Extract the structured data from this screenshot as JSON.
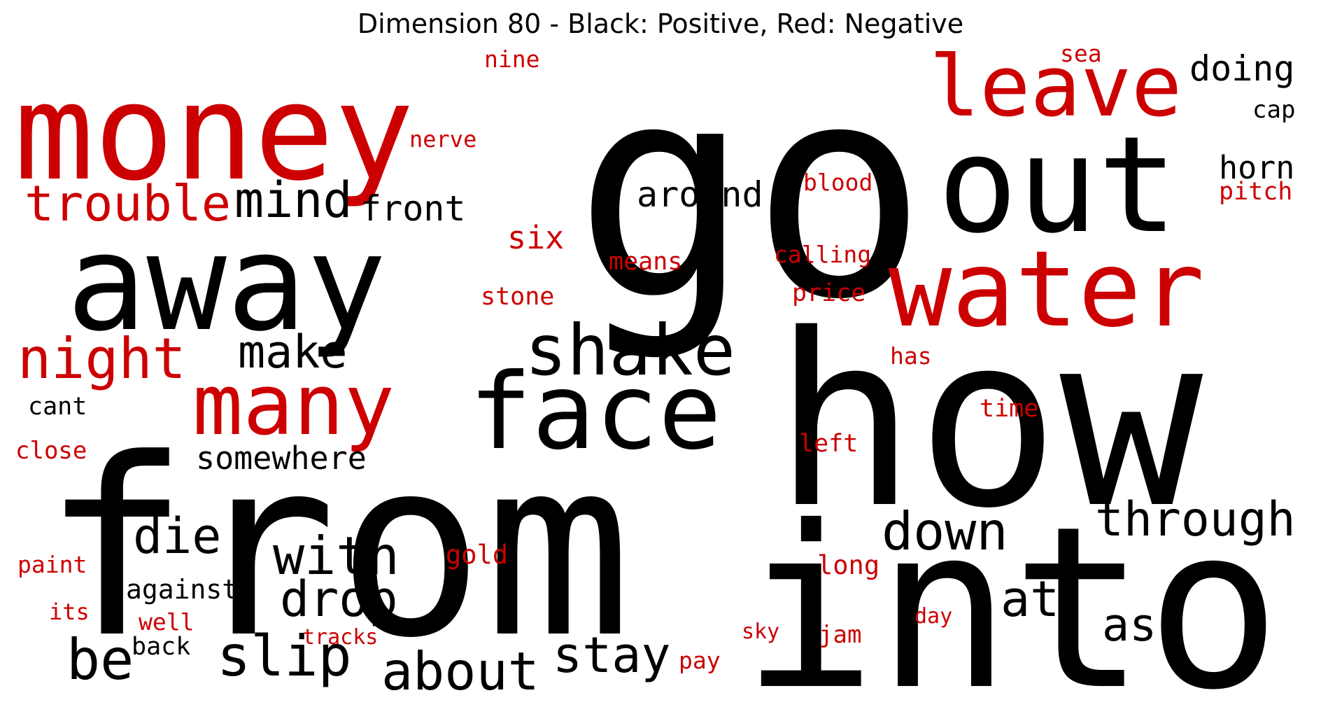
{
  "chart_data": {
    "type": "wordcloud",
    "title": "Dimension 80 - Black: Positive, Red: Negative",
    "colors": {
      "positive": "#000000",
      "negative": "#cc0000"
    },
    "words": [
      {
        "text": "go",
        "sign": "positive"
      },
      {
        "text": "how",
        "sign": "positive"
      },
      {
        "text": "from",
        "sign": "positive"
      },
      {
        "text": "into",
        "sign": "positive"
      },
      {
        "text": "money",
        "sign": "negative"
      },
      {
        "text": "away",
        "sign": "positive"
      },
      {
        "text": "out",
        "sign": "positive"
      },
      {
        "text": "water",
        "sign": "negative"
      },
      {
        "text": "leave",
        "sign": "negative"
      },
      {
        "text": "face",
        "sign": "positive"
      },
      {
        "text": "many",
        "sign": "negative"
      },
      {
        "text": "shake",
        "sign": "positive"
      },
      {
        "text": "trouble",
        "sign": "negative"
      },
      {
        "text": "mind",
        "sign": "positive"
      },
      {
        "text": "night",
        "sign": "negative"
      },
      {
        "text": "through",
        "sign": "positive"
      },
      {
        "text": "down",
        "sign": "positive"
      },
      {
        "text": "with",
        "sign": "positive"
      },
      {
        "text": "about",
        "sign": "positive"
      },
      {
        "text": "stay",
        "sign": "positive"
      },
      {
        "text": "slip",
        "sign": "positive"
      },
      {
        "text": "drop",
        "sign": "positive"
      },
      {
        "text": "make",
        "sign": "positive"
      },
      {
        "text": "die",
        "sign": "positive"
      },
      {
        "text": "be",
        "sign": "positive"
      },
      {
        "text": "at",
        "sign": "positive"
      },
      {
        "text": "as",
        "sign": "positive"
      },
      {
        "text": "around",
        "sign": "positive"
      },
      {
        "text": "doing",
        "sign": "positive"
      },
      {
        "text": "front",
        "sign": "positive"
      },
      {
        "text": "somewhere",
        "sign": "positive"
      },
      {
        "text": "horn",
        "sign": "positive"
      },
      {
        "text": "six",
        "sign": "negative"
      },
      {
        "text": "nine",
        "sign": "negative"
      },
      {
        "text": "sea",
        "sign": "negative"
      },
      {
        "text": "cap",
        "sign": "positive"
      },
      {
        "text": "pitch",
        "sign": "negative"
      },
      {
        "text": "nerve",
        "sign": "negative"
      },
      {
        "text": "blood",
        "sign": "negative"
      },
      {
        "text": "means",
        "sign": "negative"
      },
      {
        "text": "calling",
        "sign": "negative"
      },
      {
        "text": "stone",
        "sign": "negative"
      },
      {
        "text": "price",
        "sign": "negative"
      },
      {
        "text": "has",
        "sign": "negative"
      },
      {
        "text": "time",
        "sign": "negative"
      },
      {
        "text": "cant",
        "sign": "positive"
      },
      {
        "text": "close",
        "sign": "negative"
      },
      {
        "text": "left",
        "sign": "negative"
      },
      {
        "text": "against",
        "sign": "positive"
      },
      {
        "text": "long",
        "sign": "negative"
      },
      {
        "text": "gold",
        "sign": "negative"
      },
      {
        "text": "paint",
        "sign": "negative"
      },
      {
        "text": "its",
        "sign": "negative"
      },
      {
        "text": "well",
        "sign": "negative"
      },
      {
        "text": "back",
        "sign": "positive"
      },
      {
        "text": "tracks",
        "sign": "negative"
      },
      {
        "text": "sky",
        "sign": "negative"
      },
      {
        "text": "jam",
        "sign": "negative"
      },
      {
        "text": "day",
        "sign": "negative"
      },
      {
        "text": "pay",
        "sign": "negative"
      }
    ]
  }
}
